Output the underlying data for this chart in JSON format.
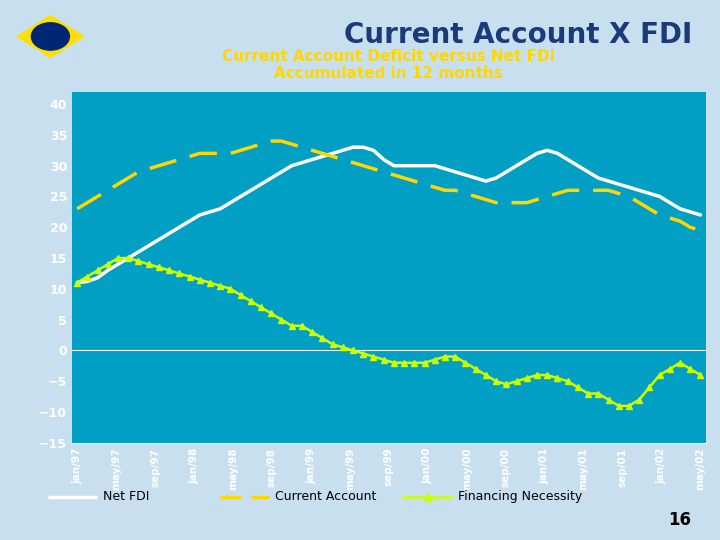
{
  "title_main": "Current Account X FDI",
  "title_sub": "Current Account Deficit versus Net FDI\nAccumulated in 12 months",
  "bg_color": "#009fc3",
  "header_bg": "#c8dff0",
  "ylim": [
    -15,
    42
  ],
  "yticks": [
    -15,
    -10,
    -5,
    0,
    5,
    10,
    15,
    20,
    25,
    30,
    35,
    40
  ],
  "x_labels": [
    "jan/97",
    "may/97",
    "sep/97",
    "jan/98",
    "may/98",
    "sep/98",
    "jan/99",
    "may/99",
    "sep/99",
    "jan/00",
    "may/00",
    "sep/00",
    "jan/01",
    "may/01",
    "sep/01",
    "jan/02",
    "may/02"
  ],
  "net_fdi_color": "#ffffff",
  "current_account_color": "#ffd700",
  "financing_color": "#ccff00",
  "legend_num": "16",
  "net_fdi": [
    11,
    11.2,
    11.8,
    13,
    14,
    15,
    16,
    17,
    18,
    19,
    20,
    21,
    22,
    22.5,
    23,
    24,
    25,
    26,
    27,
    28,
    29,
    30,
    30.5,
    31,
    31.5,
    32,
    32.5,
    33,
    33,
    32.5,
    31,
    30,
    30,
    30,
    30,
    30,
    29.5,
    29,
    28.5,
    28,
    27.5,
    28,
    29,
    30,
    31,
    32,
    32.5,
    32,
    31,
    30,
    29,
    28,
    27.5,
    27,
    26.5,
    26,
    25.5,
    25,
    24,
    23,
    22.5,
    22
  ],
  "current_account": [
    23,
    24,
    25,
    26,
    27,
    28,
    29,
    29.5,
    30,
    30.5,
    31,
    31.5,
    32,
    32,
    32,
    32,
    32.5,
    33,
    33.5,
    34,
    34,
    33.5,
    33,
    32.5,
    32,
    31.5,
    31,
    30.5,
    30,
    29.5,
    29,
    28.5,
    28,
    27.5,
    27,
    26.5,
    26,
    26,
    25.5,
    25,
    24.5,
    24,
    24,
    24,
    24,
    24.5,
    25,
    25.5,
    26,
    26,
    26,
    26,
    26,
    25.5,
    25,
    24,
    23,
    22,
    21.5,
    21,
    20,
    19.5
  ],
  "financing": [
    11,
    12,
    13,
    14,
    15,
    15,
    14.5,
    14,
    13.5,
    13,
    12.5,
    12,
    11.5,
    11,
    10.5,
    10,
    9,
    8,
    7,
    6,
    5,
    4,
    4,
    3,
    2,
    1,
    0.5,
    0,
    -0.5,
    -1,
    -1.5,
    -2,
    -2,
    -2,
    -2,
    -1.5,
    -1,
    -1,
    -2,
    -3,
    -4,
    -5,
    -5.5,
    -5,
    -4.5,
    -4,
    -4,
    -4.5,
    -5,
    -6,
    -7,
    -7,
    -8,
    -9,
    -9,
    -8,
    -6,
    -4,
    -3,
    -2,
    -3,
    -4
  ]
}
